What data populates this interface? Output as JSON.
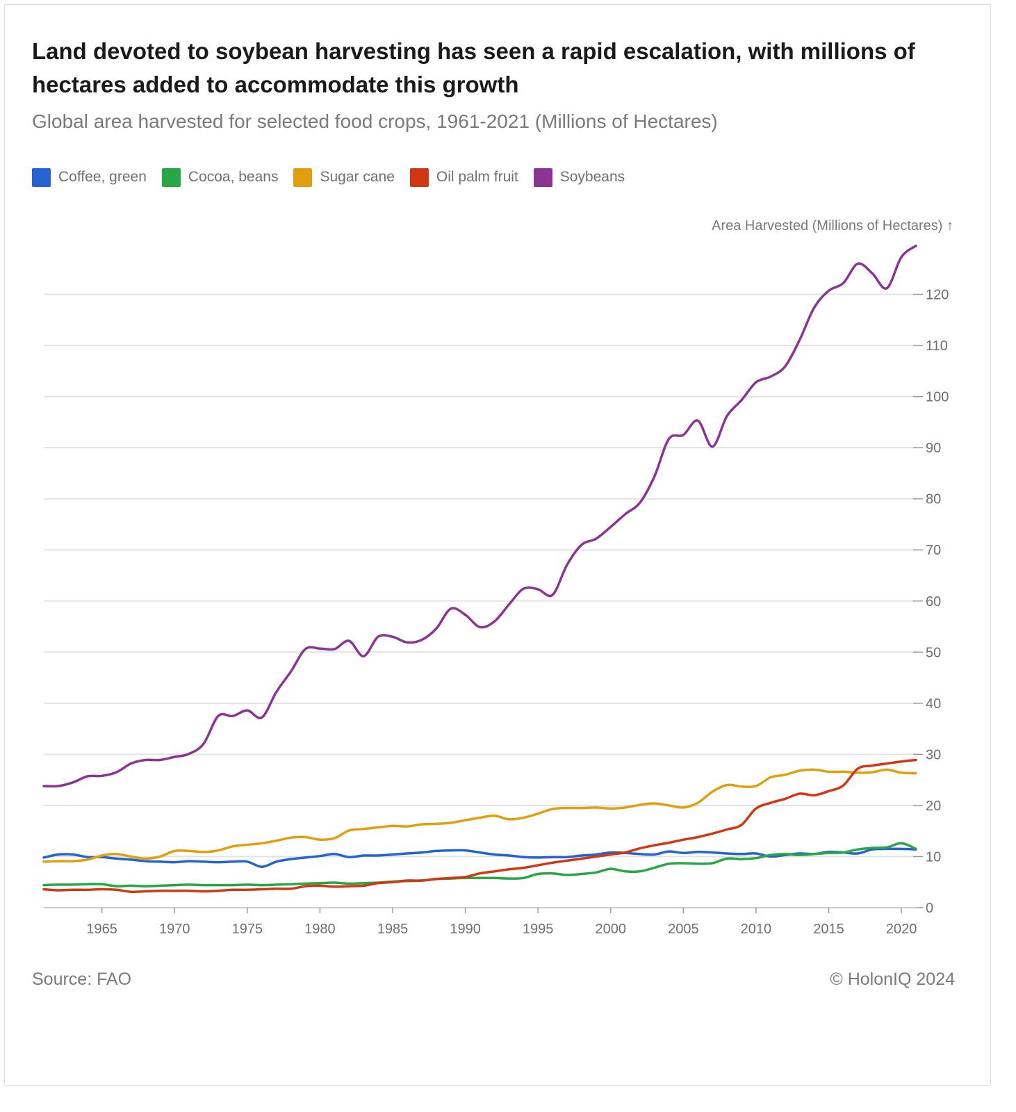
{
  "title": "Land devoted to soybean harvesting has seen a rapid escalation, with millions of hectares added to accommodate this growth",
  "subtitle": "Global area harvested for selected food crops, 1961-2021 (Millions of Hectares)",
  "source": "Source: FAO",
  "copyright": "© HolonIQ 2024",
  "chart_data": {
    "type": "line",
    "ylabel": "Area Harvested (Millions of Hectares) ↑",
    "xlabel": "",
    "xlim": [
      1961,
      2021
    ],
    "ylim": [
      0,
      130
    ],
    "xticks": [
      1965,
      1970,
      1975,
      1980,
      1985,
      1990,
      1995,
      2000,
      2005,
      2010,
      2015,
      2020
    ],
    "yticks": [
      0,
      10,
      20,
      30,
      40,
      50,
      60,
      70,
      80,
      90,
      100,
      110,
      120
    ],
    "grid": true,
    "legend_position": "top-left",
    "x": [
      1961,
      1962,
      1963,
      1964,
      1965,
      1966,
      1967,
      1968,
      1969,
      1970,
      1971,
      1972,
      1973,
      1974,
      1975,
      1976,
      1977,
      1978,
      1979,
      1980,
      1981,
      1982,
      1983,
      1984,
      1985,
      1986,
      1987,
      1988,
      1989,
      1990,
      1991,
      1992,
      1993,
      1994,
      1995,
      1996,
      1997,
      1998,
      1999,
      2000,
      2001,
      2002,
      2003,
      2004,
      2005,
      2006,
      2007,
      2008,
      2009,
      2010,
      2011,
      2012,
      2013,
      2014,
      2015,
      2016,
      2017,
      2018,
      2019,
      2020,
      2021
    ],
    "series": [
      {
        "name": "Coffee, green",
        "color": "#2563d4",
        "values": [
          9.8,
          10.4,
          10.4,
          9.9,
          9.9,
          9.6,
          9.4,
          9.1,
          9.0,
          8.9,
          9.1,
          9.0,
          8.9,
          9.0,
          9.0,
          8.0,
          9.0,
          9.5,
          9.8,
          10.1,
          10.5,
          9.9,
          10.2,
          10.2,
          10.4,
          10.6,
          10.8,
          11.1,
          11.2,
          11.2,
          10.8,
          10.4,
          10.2,
          9.9,
          9.8,
          9.9,
          9.9,
          10.2,
          10.4,
          10.8,
          10.7,
          10.5,
          10.4,
          11.0,
          10.7,
          10.9,
          10.8,
          10.6,
          10.5,
          10.6,
          10.0,
          10.3,
          10.6,
          10.5,
          10.9,
          10.8,
          10.6,
          11.4,
          11.5,
          11.5,
          11.4
        ]
      },
      {
        "name": "Cocoa, beans",
        "color": "#28a745",
        "values": [
          4.4,
          4.5,
          4.5,
          4.6,
          4.6,
          4.2,
          4.3,
          4.2,
          4.3,
          4.4,
          4.5,
          4.4,
          4.4,
          4.4,
          4.5,
          4.4,
          4.5,
          4.6,
          4.7,
          4.8,
          4.9,
          4.7,
          4.8,
          4.9,
          5.1,
          5.2,
          5.3,
          5.6,
          5.7,
          5.8,
          5.8,
          5.8,
          5.7,
          5.8,
          6.6,
          6.7,
          6.4,
          6.6,
          6.9,
          7.6,
          7.1,
          7.1,
          7.8,
          8.6,
          8.7,
          8.6,
          8.7,
          9.6,
          9.5,
          9.7,
          10.3,
          10.5,
          10.3,
          10.5,
          10.7,
          10.8,
          11.4,
          11.7,
          11.8,
          12.6,
          11.5
        ]
      },
      {
        "name": "Sugar cane",
        "color": "#e0a00e",
        "values": [
          9.0,
          9.1,
          9.1,
          9.4,
          10.2,
          10.5,
          10.0,
          9.6,
          10.0,
          11.1,
          11.1,
          10.9,
          11.2,
          12.0,
          12.3,
          12.6,
          13.1,
          13.7,
          13.8,
          13.3,
          13.6,
          15.1,
          15.4,
          15.7,
          16.0,
          15.9,
          16.3,
          16.4,
          16.6,
          17.1,
          17.6,
          18.0,
          17.3,
          17.6,
          18.4,
          19.3,
          19.5,
          19.5,
          19.6,
          19.4,
          19.6,
          20.1,
          20.4,
          20.0,
          19.6,
          20.5,
          22.7,
          24.0,
          23.7,
          23.8,
          25.5,
          26.0,
          26.8,
          27.0,
          26.6,
          26.6,
          26.4,
          26.5,
          27.0,
          26.4,
          26.3
        ]
      },
      {
        "name": "Oil palm fruit",
        "color": "#d23714",
        "values": [
          3.6,
          3.4,
          3.5,
          3.5,
          3.6,
          3.5,
          3.1,
          3.2,
          3.3,
          3.3,
          3.3,
          3.2,
          3.3,
          3.5,
          3.5,
          3.6,
          3.7,
          3.7,
          4.2,
          4.3,
          4.1,
          4.2,
          4.3,
          4.8,
          5.0,
          5.3,
          5.3,
          5.6,
          5.8,
          6.0,
          6.7,
          7.1,
          7.5,
          7.8,
          8.3,
          8.8,
          9.2,
          9.6,
          10.0,
          10.4,
          10.8,
          11.6,
          12.2,
          12.7,
          13.3,
          13.8,
          14.5,
          15.3,
          16.2,
          19.4,
          20.5,
          21.3,
          22.3,
          22.0,
          22.8,
          23.9,
          27.2,
          27.8,
          28.2,
          28.6,
          28.9
        ]
      },
      {
        "name": "Soybeans",
        "color": "#8b3494",
        "values": [
          23.8,
          23.8,
          24.5,
          25.7,
          25.8,
          26.5,
          28.2,
          28.9,
          28.9,
          29.5,
          30.1,
          32.1,
          37.5,
          37.5,
          38.6,
          37.2,
          42.2,
          46.2,
          50.6,
          50.7,
          50.6,
          52.2,
          49.2,
          53.0,
          53.0,
          51.9,
          52.4,
          54.6,
          58.5,
          57.3,
          54.9,
          56.0,
          59.3,
          62.4,
          62.3,
          61.2,
          67.1,
          71.0,
          72.2,
          74.5,
          77.0,
          79.2,
          84.3,
          91.7,
          92.5,
          95.3,
          90.2,
          96.2,
          99.3,
          102.8,
          103.9,
          105.9,
          111.1,
          117.4,
          120.7,
          122.2,
          126.0,
          124.1,
          121.2,
          127.3,
          129.5
        ]
      }
    ]
  }
}
